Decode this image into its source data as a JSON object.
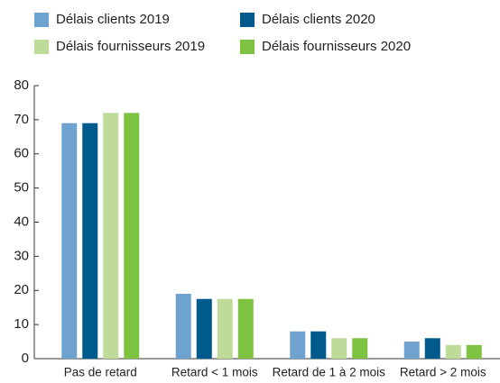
{
  "chart_data": {
    "type": "bar",
    "categories": [
      "Pas de retard",
      "Retard < 1 mois",
      "Retard de 1 à 2 mois",
      "Retard > 2 mois"
    ],
    "series": [
      {
        "name": "Délais clients 2019",
        "color": "#6fa3cf",
        "values": [
          69,
          19,
          8,
          5
        ]
      },
      {
        "name": "Délais clients 2020",
        "color": "#005a8c",
        "values": [
          69,
          17.5,
          8,
          6
        ]
      },
      {
        "name": "Délais fournisseurs 2019",
        "color": "#bedb9a",
        "values": [
          72,
          17.5,
          6,
          4
        ]
      },
      {
        "name": "Délais fournisseurs 2020",
        "color": "#7dc241",
        "values": [
          72,
          17.5,
          6,
          4
        ]
      }
    ],
    "ylim": [
      0,
      80
    ],
    "yticks": [
      0,
      10,
      20,
      30,
      40,
      50,
      60,
      70,
      80
    ],
    "grid": false
  }
}
